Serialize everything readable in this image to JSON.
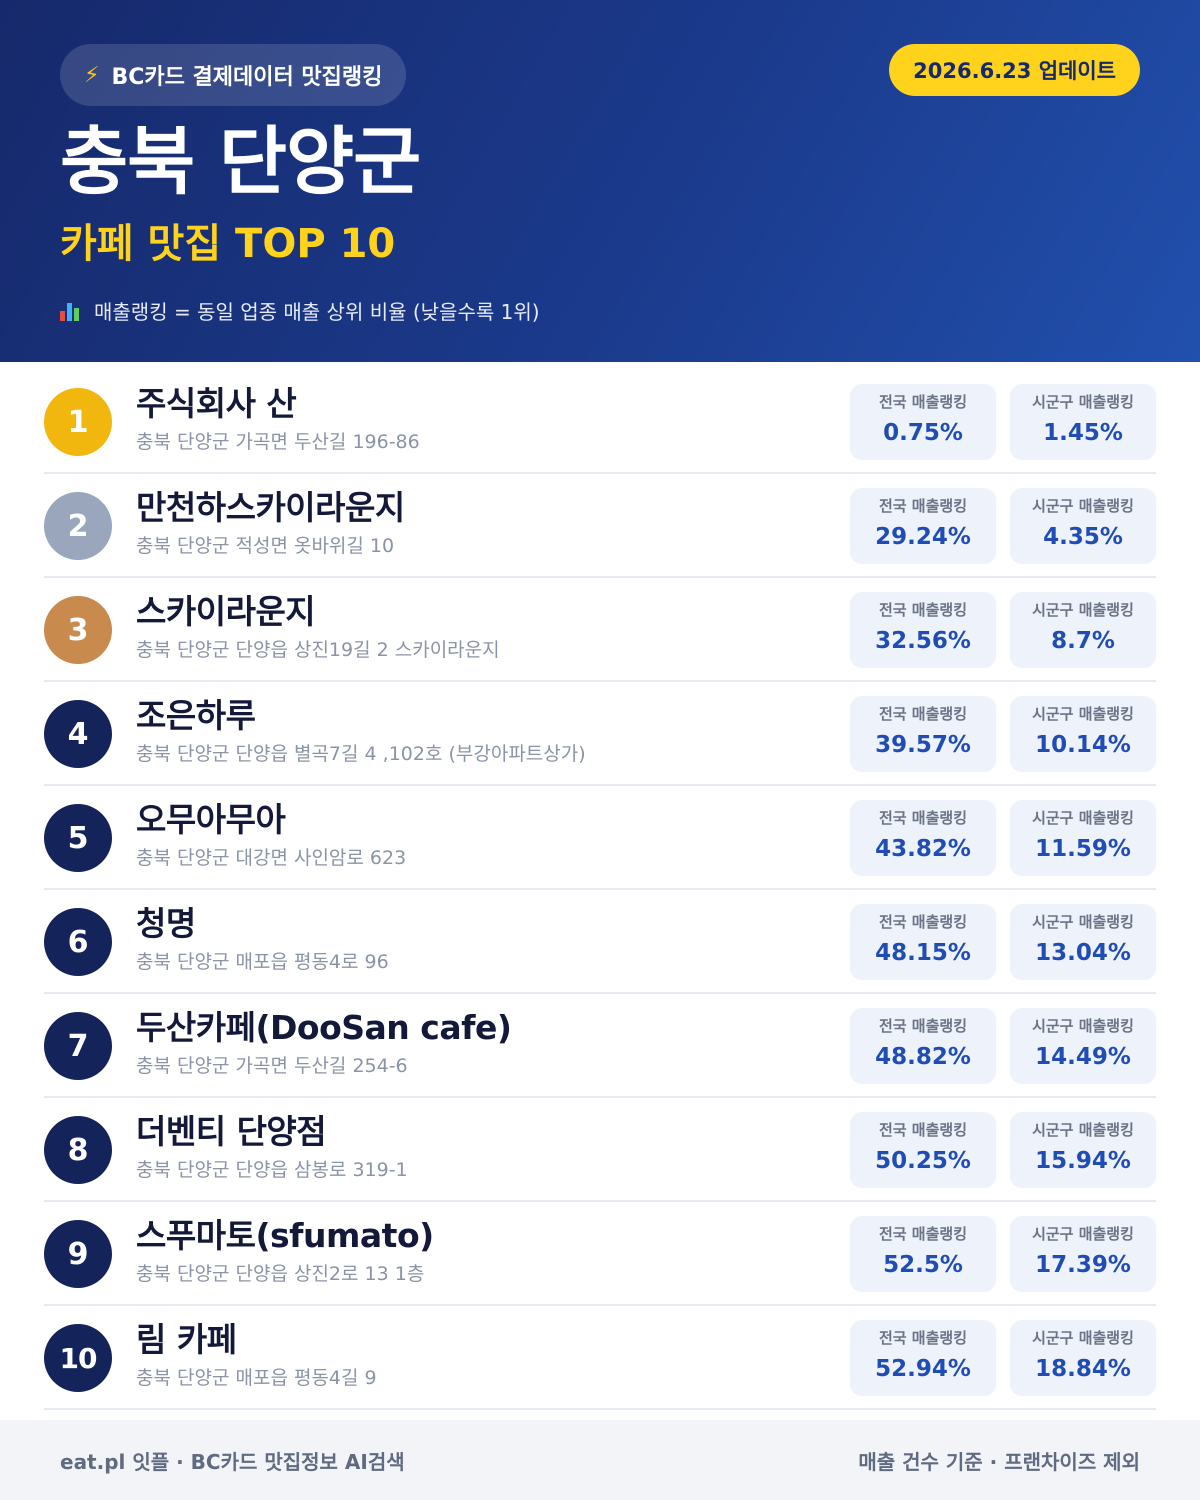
{
  "header": {
    "source_label": "BC카드 결제데이터 맛집랭킹",
    "update_label": "2026.6.23 업데이트",
    "region_title": "충북 단양군",
    "subtitle": "카페 맛집 TOP 10",
    "legend_text": "매출랭킹 = 동일 업종 매출 상위 비율 (낮을수록 1위)",
    "icons": {
      "source": "lightning-icon",
      "legend": "bar-chart-icon"
    },
    "colors": {
      "background": "#1b3a8c",
      "accent": "#ffd21c"
    }
  },
  "stat_labels": {
    "national": "전국 매출랭킹",
    "local": "시군구 매출랭킹"
  },
  "rank_colors": {
    "gold": "#f1b70f",
    "silver": "#9aa6bb",
    "bronze": "#c98a4e",
    "default": "#14235a"
  },
  "items": [
    {
      "rank": "1",
      "name": "주식회사 산",
      "address": "충북 단양군 가곡면 두산길 196-86",
      "national": "0.75%",
      "local": "1.45%"
    },
    {
      "rank": "2",
      "name": "만천하스카이라운지",
      "address": "충북 단양군 적성면 옷바위길 10",
      "national": "29.24%",
      "local": "4.35%"
    },
    {
      "rank": "3",
      "name": "스카이라운지",
      "address": "충북 단양군 단양읍 상진19길 2 스카이라운지",
      "national": "32.56%",
      "local": "8.7%"
    },
    {
      "rank": "4",
      "name": "조은하루",
      "address": "충북 단양군 단양읍 별곡7길 4 ,102호 (부강아파트상가)",
      "national": "39.57%",
      "local": "10.14%"
    },
    {
      "rank": "5",
      "name": "오무아무아",
      "address": "충북 단양군 대강면 사인암로 623",
      "national": "43.82%",
      "local": "11.59%"
    },
    {
      "rank": "6",
      "name": "청명",
      "address": "충북 단양군 매포읍 평동4로 96",
      "national": "48.15%",
      "local": "13.04%"
    },
    {
      "rank": "7",
      "name": "두산카페(DooSan cafe)",
      "address": "충북 단양군 가곡면 두산길 254-6",
      "national": "48.82%",
      "local": "14.49%"
    },
    {
      "rank": "8",
      "name": "더벤티 단양점",
      "address": "충북 단양군 단양읍 삼봉로 319-1",
      "national": "50.25%",
      "local": "15.94%"
    },
    {
      "rank": "9",
      "name": "스푸마토(sfumato)",
      "address": "충북 단양군 단양읍 상진2로 13 1층",
      "national": "52.5%",
      "local": "17.39%"
    },
    {
      "rank": "10",
      "name": "림 카페",
      "address": "충북 단양군 매포읍 평동4길 9",
      "national": "52.94%",
      "local": "18.84%"
    }
  ],
  "footer": {
    "left_text": "eat.pl 잇플 · BC카드 맛집정보 AI검색",
    "right_text": "매출 건수 기준 · 프랜차이즈 제외"
  }
}
